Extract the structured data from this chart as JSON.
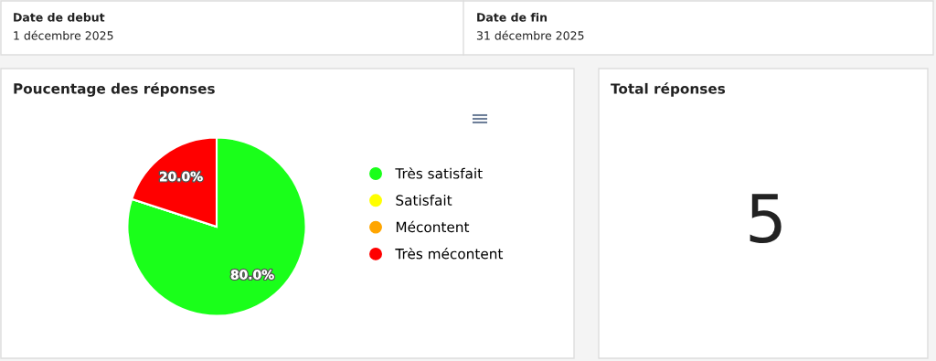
{
  "chart_data": [
    {
      "type": "other",
      "annotations": [
        "Date de debut",
        "1 décembre 2025",
        "Date de fin",
        "31 décembre 2025"
      ]
    },
    {
      "type": "pie",
      "title": "Poucentage des réponses",
      "categories": [
        "Très satisfait",
        "Satisfait",
        "Mécontent",
        "Très mécontent"
      ],
      "values": [
        80,
        0,
        0,
        20
      ],
      "colors": [
        "#1aff1a",
        "#ffff00",
        "#ffa500",
        "#ff0000"
      ],
      "value_labels": [
        "80.0%",
        null,
        null,
        "20.0%"
      ],
      "legend": "right"
    },
    {
      "type": "other",
      "title": "Total réponses",
      "annotations": [
        "5"
      ]
    }
  ]
}
